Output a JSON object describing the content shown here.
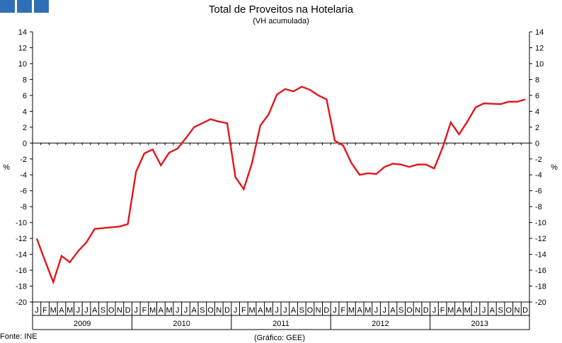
{
  "chart_data": {
    "type": "line",
    "title": "Total de Proveitos na Hotelaria",
    "subtitle": "(VH acumulada)",
    "ylabel": "%",
    "ylabel_right": "%",
    "ylim": [
      -20,
      14
    ],
    "yticks": [
      14,
      12,
      10,
      8,
      6,
      4,
      2,
      0,
      -2,
      -4,
      -6,
      -8,
      -10,
      -12,
      -14,
      -16,
      -18,
      -20
    ],
    "month_labels": [
      "J",
      "F",
      "M",
      "A",
      "M",
      "J",
      "J",
      "A",
      "S",
      "O",
      "N",
      "D"
    ],
    "years": [
      "2009",
      "2010",
      "2011",
      "2012",
      "2013"
    ],
    "series": [
      {
        "color": "#e3151b",
        "values": [
          -12.0,
          -14.8,
          -17.5,
          -14.2,
          -15.0,
          -13.6,
          -12.5,
          -10.8,
          -10.7,
          -10.6,
          -10.5,
          -10.2,
          -3.6,
          -1.3,
          -0.8,
          -2.8,
          -1.2,
          -0.7,
          0.6,
          2.0,
          2.5,
          3.0,
          2.7,
          2.5,
          -4.3,
          -5.8,
          -2.5,
          2.2,
          3.6,
          6.1,
          6.8,
          6.5,
          7.1,
          6.7,
          6.0,
          5.5,
          0.3,
          -0.3,
          -2.5,
          -4.0,
          -3.8,
          -3.9,
          -3.0,
          -2.6,
          -2.7,
          -3.0,
          -2.7,
          -2.7,
          -3.2,
          -0.6,
          2.6,
          1.1,
          2.7,
          4.5,
          5.0,
          4.95,
          4.9,
          5.2,
          5.2,
          5.5
        ]
      }
    ],
    "grid": false,
    "legend": "none"
  },
  "footer": {
    "source": "Fonte: INE",
    "credit": "(Gráfico: GEE)"
  },
  "colors": {
    "logo": "#2e6fb5",
    "series": "#e3151b",
    "axis": "#000000"
  }
}
